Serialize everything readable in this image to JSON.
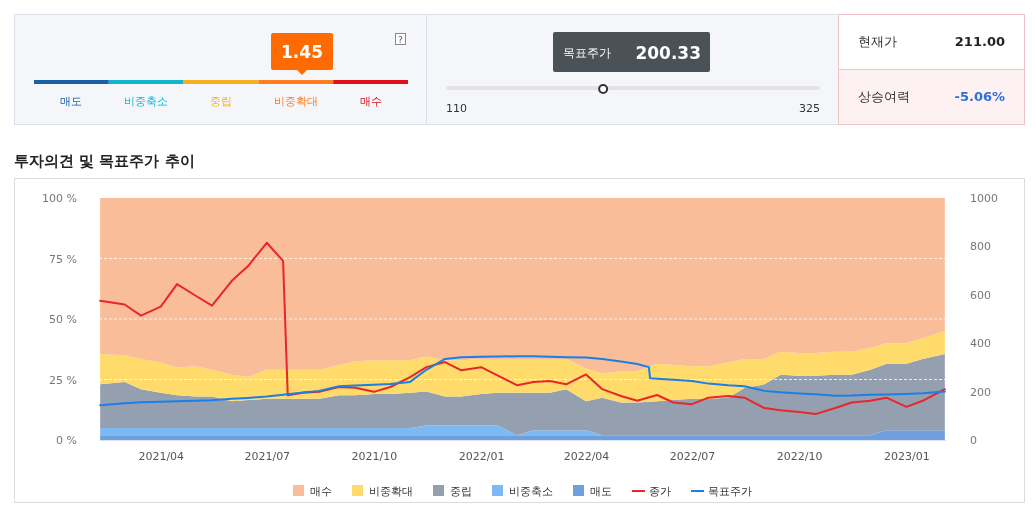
{
  "chart_data": [
    {
      "type": "other",
      "annotations": [
        "1.45",
        "?",
        "목표주가",
        "200.33",
        "110",
        "325",
        "현재가",
        "211.00",
        "상승여력",
        "-5.06%",
        "매도",
        "비중축소",
        "중립",
        "비중확대",
        "매수"
      ]
    },
    {
      "type": "area",
      "stacked": true,
      "title": "투자의견 및 목표주가 추이",
      "x": [
        "2021-02-08",
        "2021-03-01",
        "2021-03-15",
        "2021-04-01",
        "2021-04-15",
        "2021-05-01",
        "2021-05-15",
        "2021-06-01",
        "2021-06-15",
        "2021-07-01",
        "2021-07-15",
        "2021-08-01",
        "2021-08-15",
        "2021-09-01",
        "2021-09-15",
        "2021-10-01",
        "2021-10-15",
        "2021-11-01",
        "2021-11-15",
        "2021-12-01",
        "2021-12-15",
        "2022-01-01",
        "2022-01-15",
        "2022-02-01",
        "2022-02-15",
        "2022-03-01",
        "2022-03-15",
        "2022-04-01",
        "2022-04-15",
        "2022-05-01",
        "2022-05-15",
        "2022-06-01",
        "2022-06-15",
        "2022-07-01",
        "2022-07-15",
        "2022-08-01",
        "2022-08-15",
        "2022-09-01",
        "2022-09-15",
        "2022-10-01",
        "2022-10-15",
        "2022-11-01",
        "2022-11-15",
        "2022-12-01",
        "2022-12-15",
        "2023-01-01",
        "2023-01-15",
        "2023-02-03"
      ],
      "series": [
        {
          "name": "매도",
          "color": "#6f9fde",
          "values": [
            2,
            2,
            2,
            2,
            2,
            2,
            2,
            2,
            2,
            2,
            2,
            2,
            2,
            2,
            2,
            2,
            2,
            2,
            2,
            2,
            2,
            2,
            2,
            2,
            2,
            2,
            2,
            2,
            2,
            2,
            2,
            2,
            2,
            2,
            2,
            2,
            2,
            2,
            2,
            2,
            2,
            2,
            2,
            2,
            4,
            4,
            4,
            4
          ]
        },
        {
          "name": "비중축소",
          "color": "#7bbaf2",
          "values": [
            3,
            3,
            3,
            3,
            3,
            3,
            3,
            3,
            3,
            3,
            3,
            3,
            3,
            3,
            3,
            3,
            3,
            3,
            4,
            4,
            4,
            4,
            4,
            0,
            2,
            2,
            2,
            2,
            0,
            0,
            0,
            0,
            0,
            0,
            0,
            0,
            0,
            0,
            0,
            0,
            0,
            0,
            0,
            0,
            0,
            0,
            0,
            0
          ]
        },
        {
          "name": "중립",
          "color": "#949fb0",
          "values": [
            18,
            19,
            16,
            14.5,
            13.5,
            13,
            13,
            11,
            11.5,
            12,
            12,
            12,
            12,
            13.5,
            13.5,
            14,
            14,
            14.5,
            14,
            12,
            12,
            13,
            13.5,
            17.5,
            15.5,
            15.5,
            17,
            12,
            15.5,
            13.5,
            13.5,
            14,
            14.5,
            15,
            15,
            15.5,
            19.5,
            21,
            25,
            24.5,
            24.5,
            25,
            25,
            27,
            27.5,
            27.5,
            29.5,
            31.5
          ]
        },
        {
          "name": "비중확대",
          "color": "#fedb6b",
          "values": [
            12.5,
            11,
            12.5,
            12.5,
            11.5,
            12.5,
            11,
            11,
            9.5,
            12,
            12,
            12,
            12,
            12.5,
            14,
            14,
            14,
            13.5,
            14.5,
            15,
            15,
            14.5,
            14,
            14,
            14,
            14,
            12.5,
            13.5,
            10,
            13,
            13,
            15.5,
            14.5,
            13.5,
            13.5,
            14.5,
            12,
            10.5,
            9.5,
            9.5,
            9.5,
            9.5,
            9.5,
            9,
            8.5,
            8.5,
            8.5,
            9.5
          ]
        },
        {
          "name": "매수",
          "color": "#f9bd9a",
          "values": [
            64.5,
            65,
            66.5,
            68,
            70,
            69.5,
            71,
            73,
            74,
            71,
            71,
            71,
            71,
            69,
            67.5,
            67,
            67,
            67,
            65.5,
            67,
            67,
            66.5,
            66.5,
            66.5,
            66.5,
            66.5,
            66.5,
            70.5,
            72.5,
            71.5,
            71.5,
            68.5,
            69,
            69.5,
            69.5,
            68,
            66.5,
            66.5,
            63.5,
            64,
            64,
            63.5,
            63.5,
            62,
            60,
            60,
            58,
            55
          ]
        },
        {
          "name": "종가",
          "type": "line",
          "axis": "y2",
          "color": "#e8262b",
          "x": [
            "2021-02-08",
            "2021-03-01",
            "2021-03-15",
            "2021-04-01",
            "2021-04-15",
            "2021-05-01",
            "2021-05-15",
            "2021-06-01",
            "2021-06-15",
            "2021-07-01",
            "2021-07-15",
            "2021-07-19",
            "2021-08-01",
            "2021-08-15",
            "2021-09-01",
            "2021-09-15",
            "2021-10-01",
            "2021-10-15",
            "2021-11-01",
            "2021-11-15",
            "2021-12-01",
            "2021-12-15",
            "2022-01-01",
            "2022-01-15",
            "2022-02-01",
            "2022-02-15",
            "2022-03-01",
            "2022-03-15",
            "2022-04-01",
            "2022-04-15",
            "2022-05-01",
            "2022-05-15",
            "2022-06-01",
            "2022-06-15",
            "2022-07-01",
            "2022-07-15",
            "2022-08-01",
            "2022-08-15",
            "2022-09-01",
            "2022-09-15",
            "2022-10-01",
            "2022-10-15",
            "2022-11-01",
            "2022-11-15",
            "2022-12-01",
            "2022-12-15",
            "2023-01-01",
            "2023-01-15",
            "2023-02-03"
          ],
          "values": [
            575,
            560,
            514,
            551,
            644,
            596,
            555,
            658,
            719,
            815,
            740,
            185,
            195,
            199,
            219,
            216,
            199,
            219,
            260,
            301,
            322,
            288,
            301,
            267,
            226,
            240,
            244,
            230,
            271,
            210,
            182,
            162,
            186,
            155,
            148,
            175,
            182,
            175,
            132,
            123,
            116,
            107,
            132,
            155,
            162,
            175,
            137,
            162,
            210
          ]
        },
        {
          "name": "목표주가",
          "type": "line",
          "axis": "y2",
          "color": "#1a7fe6",
          "x": [
            "2021-02-08",
            "2021-03-01",
            "2021-03-15",
            "2021-04-01",
            "2021-04-15",
            "2021-05-01",
            "2021-05-15",
            "2021-06-01",
            "2021-06-15",
            "2021-07-01",
            "2021-07-15",
            "2021-08-01",
            "2021-08-15",
            "2021-09-01",
            "2021-09-15",
            "2021-10-01",
            "2021-10-15",
            "2021-11-01",
            "2021-11-15",
            "2021-12-01",
            "2021-12-15",
            "2022-01-01",
            "2022-01-15",
            "2022-02-01",
            "2022-02-15",
            "2022-03-01",
            "2022-03-15",
            "2022-04-01",
            "2022-04-15",
            "2022-05-01",
            "2022-05-15",
            "2022-05-25",
            "2022-05-26",
            "2022-06-01",
            "2022-06-15",
            "2022-07-01",
            "2022-07-15",
            "2022-08-01",
            "2022-08-15",
            "2022-09-01",
            "2022-09-15",
            "2022-10-01",
            "2022-10-15",
            "2022-11-01",
            "2022-11-15",
            "2022-12-01",
            "2022-12-15",
            "2023-01-01",
            "2023-01-15",
            "2023-02-03"
          ],
          "values": [
            144,
            152,
            156,
            158,
            160,
            162,
            164,
            170,
            174,
            180,
            187,
            196,
            203,
            222,
            225,
            228,
            231,
            240,
            290,
            335,
            342,
            344,
            345,
            346,
            346,
            344,
            342,
            341,
            335,
            324,
            314,
            301,
            255,
            253,
            249,
            244,
            233,
            226,
            222,
            203,
            197,
            192,
            189,
            183,
            184,
            187,
            188,
            190,
            193,
            200
          ]
        }
      ],
      "xlim": [
        "2021-02-07",
        "2023-02-04"
      ],
      "xticks": [
        {
          "value": "2021-04-01",
          "label": "2021/04"
        },
        {
          "value": "2021-07-01",
          "label": "2021/07"
        },
        {
          "value": "2021-10-01",
          "label": "2021/10"
        },
        {
          "value": "2022-01-01",
          "label": "2022/01"
        },
        {
          "value": "2022-04-01",
          "label": "2022/04"
        },
        {
          "value": "2022-07-01",
          "label": "2022/07"
        },
        {
          "value": "2022-10-01",
          "label": "2022/10"
        },
        {
          "value": "2023-01-01",
          "label": "2023/01"
        }
      ],
      "ylim": [
        0,
        100
      ],
      "yticks": [
        {
          "value": 0,
          "label": "0 %"
        },
        {
          "value": 25,
          "label": "25 %"
        },
        {
          "value": 50,
          "label": "50 %"
        },
        {
          "value": 75,
          "label": "75 %"
        },
        {
          "value": 100,
          "label": "100 %"
        }
      ],
      "y2lim": [
        0,
        1000
      ],
      "y2ticks": [
        0,
        200,
        400,
        600,
        800,
        1000
      ],
      "grid": "y",
      "legend": "bottom"
    }
  ]
}
